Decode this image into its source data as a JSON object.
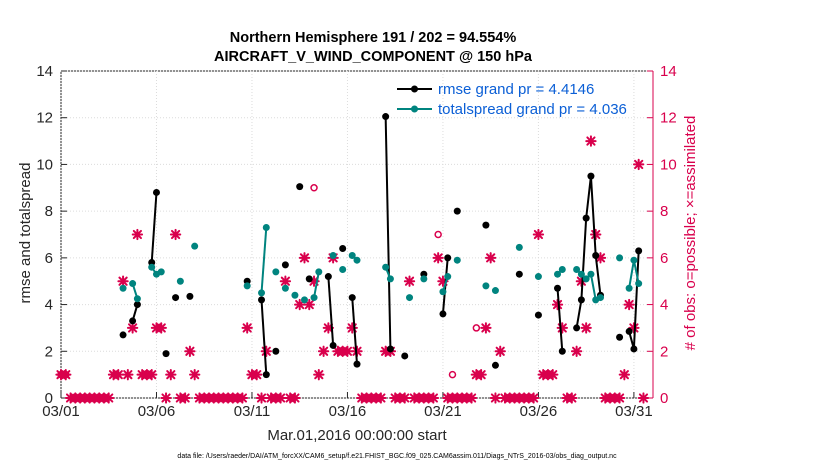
{
  "chart_data": {
    "type": "line",
    "title": "Northern Hemisphere 191 / 202 = 94.554%",
    "subtitle": "AIRCRAFT_V_WIND_COMPONENT @ 150 hPa",
    "xlabel": "Mar.01,2016 00:00:00 start",
    "ylabel": "rmse and totalspread",
    "ylabel_right": "# of obs: o=possible; ×=assimilated",
    "xlim": [
      1,
      32
    ],
    "ylim": [
      0,
      14
    ],
    "ylim_right": [
      0,
      14
    ],
    "yticks": [
      0,
      2,
      4,
      6,
      8,
      10,
      12,
      14
    ],
    "yticks_right": [
      0,
      2,
      4,
      6,
      8,
      10,
      12,
      14
    ],
    "x_ticks": [
      {
        "x": 1,
        "label": "03/01"
      },
      {
        "x": 6,
        "label": "03/06"
      },
      {
        "x": 11,
        "label": "03/11"
      },
      {
        "x": 16,
        "label": "03/16"
      },
      {
        "x": 21,
        "label": "03/21"
      },
      {
        "x": 26,
        "label": "03/26"
      },
      {
        "x": 31,
        "label": "03/31"
      }
    ],
    "colors": {
      "rmse": "#000000",
      "spread": "#00847f",
      "obs": "#d9004c",
      "legend_text": "#0b5fd6",
      "axis": "#262626"
    },
    "legend_position": "top-right",
    "footer": "data file: /Users/raeder/DAI/ATM_forcXX/CAM6_setup/f.e21.FHIST_BGC.f09_025.CAM6assim.011/Diags_NTrS_2016-03/obs_diag_output.nc",
    "series": [
      {
        "name": "rmse grand pr = 4.4146",
        "key": "rmse",
        "segments": [
          [
            [
              4.25,
              2.7
            ]
          ],
          [
            [
              4.75,
              3.3
            ],
            [
              5.0,
              4.0
            ]
          ],
          [
            [
              5.75,
              5.8
            ],
            [
              6.0,
              8.8
            ]
          ],
          [
            [
              6.5,
              1.9
            ]
          ],
          [
            [
              7.0,
              4.3
            ]
          ],
          [
            [
              7.75,
              4.35
            ]
          ],
          [
            [
              10.75,
              5.0
            ]
          ],
          [
            [
              11.5,
              4.2
            ],
            [
              11.75,
              1.0
            ]
          ],
          [
            [
              12.25,
              2.0
            ]
          ],
          [
            [
              12.75,
              5.7
            ]
          ],
          [
            [
              13.5,
              9.05
            ]
          ],
          [
            [
              14.0,
              5.1
            ]
          ],
          [
            [
              15.0,
              5.2
            ],
            [
              15.25,
              2.25
            ]
          ],
          [
            [
              15.75,
              6.4
            ]
          ],
          [
            [
              16.25,
              4.3
            ],
            [
              16.5,
              1.45
            ]
          ],
          [
            [
              18.0,
              12.05
            ],
            [
              18.25,
              2.1
            ]
          ],
          [
            [
              19.0,
              1.8
            ]
          ],
          [
            [
              20.0,
              5.3
            ]
          ],
          [
            [
              21.0,
              3.6
            ],
            [
              21.25,
              6.0
            ]
          ],
          [
            [
              21.75,
              8.0
            ]
          ],
          [
            [
              23.25,
              7.4
            ]
          ],
          [
            [
              23.75,
              1.4
            ]
          ],
          [
            [
              25.0,
              5.3
            ]
          ],
          [
            [
              26.0,
              3.55
            ]
          ],
          [
            [
              27.0,
              4.7
            ],
            [
              27.25,
              2.0
            ]
          ],
          [
            [
              28.0,
              3.0
            ],
            [
              28.25,
              4.2
            ],
            [
              28.5,
              7.7
            ],
            [
              28.75,
              9.5
            ],
            [
              29.0,
              6.1
            ],
            [
              29.25,
              4.4
            ]
          ],
          [
            [
              30.25,
              2.6
            ]
          ],
          [
            [
              30.75,
              2.85
            ],
            [
              31.0,
              2.1
            ],
            [
              31.25,
              6.3
            ]
          ]
        ]
      },
      {
        "name": "totalspread grand pr = 4.036",
        "key": "spread",
        "segments": [
          [
            [
              4.25,
              4.7
            ]
          ],
          [
            [
              4.75,
              4.9
            ],
            [
              5.0,
              4.25
            ]
          ],
          [
            [
              5.75,
              5.6
            ],
            [
              6.0,
              5.3
            ],
            [
              6.25,
              5.4
            ]
          ],
          [
            [
              7.25,
              5.0
            ]
          ],
          [
            [
              8.0,
              6.5
            ]
          ],
          [
            [
              10.75,
              4.8
            ]
          ],
          [
            [
              11.5,
              4.5
            ],
            [
              11.75,
              7.3
            ]
          ],
          [
            [
              12.25,
              5.4
            ]
          ],
          [
            [
              12.75,
              4.7
            ]
          ],
          [
            [
              13.25,
              4.4
            ]
          ],
          [
            [
              13.75,
              4.2
            ]
          ],
          [
            [
              14.25,
              4.3
            ],
            [
              14.5,
              5.4
            ]
          ],
          [
            [
              15.25,
              6.1
            ]
          ],
          [
            [
              15.75,
              5.5
            ]
          ],
          [
            [
              16.25,
              6.1
            ],
            [
              16.5,
              5.9
            ]
          ],
          [
            [
              18.0,
              5.6
            ],
            [
              18.25,
              5.1
            ]
          ],
          [
            [
              19.25,
              4.3
            ]
          ],
          [
            [
              20.0,
              5.1
            ]
          ],
          [
            [
              21.0,
              4.55
            ],
            [
              21.25,
              5.2
            ]
          ],
          [
            [
              21.75,
              5.9
            ]
          ],
          [
            [
              23.25,
              4.8
            ]
          ],
          [
            [
              23.75,
              4.6
            ]
          ],
          [
            [
              25.0,
              6.45
            ]
          ],
          [
            [
              26.0,
              5.2
            ]
          ],
          [
            [
              27.0,
              5.3
            ],
            [
              27.25,
              5.5
            ]
          ],
          [
            [
              28.0,
              5.5
            ],
            [
              28.25,
              5.3
            ],
            [
              28.5,
              5.1
            ],
            [
              28.75,
              5.3
            ],
            [
              29.0,
              4.2
            ],
            [
              29.25,
              4.3
            ]
          ],
          [
            [
              30.25,
              6.0
            ]
          ],
          [
            [
              30.75,
              4.7
            ],
            [
              31.0,
              5.9
            ],
            [
              31.25,
              4.9
            ]
          ]
        ]
      },
      {
        "name": "# of obs possible",
        "key": "obs_possible",
        "marker": "o",
        "axis": "right",
        "points": [
          [
            1.0,
            1.0
          ],
          [
            1.25,
            1.0
          ],
          [
            14.25,
            9.0
          ],
          [
            20.75,
            7.0
          ],
          [
            21.5,
            1.0
          ],
          [
            22.75,
            3.0
          ]
        ]
      },
      {
        "name": "# of obs assimilated",
        "key": "obs_assimilated",
        "marker": "x",
        "axis": "right",
        "points": [
          [
            1.0,
            1
          ],
          [
            1.25,
            1
          ],
          [
            1.5,
            0
          ],
          [
            1.75,
            0
          ],
          [
            2.0,
            0
          ],
          [
            2.25,
            0
          ],
          [
            2.5,
            0
          ],
          [
            2.75,
            0
          ],
          [
            3.0,
            0
          ],
          [
            3.25,
            0
          ],
          [
            3.5,
            0
          ],
          [
            3.75,
            1
          ],
          [
            4.0,
            1
          ],
          [
            4.25,
            5
          ],
          [
            4.5,
            1
          ],
          [
            4.75,
            3
          ],
          [
            5.0,
            7
          ],
          [
            5.25,
            1
          ],
          [
            5.5,
            1
          ],
          [
            5.75,
            1
          ],
          [
            6.0,
            3
          ],
          [
            6.25,
            3
          ],
          [
            6.5,
            0
          ],
          [
            6.75,
            1
          ],
          [
            7.0,
            7
          ],
          [
            7.25,
            0
          ],
          [
            7.5,
            0
          ],
          [
            7.75,
            2
          ],
          [
            8.0,
            1
          ],
          [
            8.25,
            0
          ],
          [
            8.5,
            0
          ],
          [
            8.75,
            0
          ],
          [
            9.0,
            0
          ],
          [
            9.25,
            0
          ],
          [
            9.5,
            0
          ],
          [
            9.75,
            0
          ],
          [
            10.0,
            0
          ],
          [
            10.25,
            0
          ],
          [
            10.5,
            0
          ],
          [
            10.75,
            3
          ],
          [
            11.0,
            1
          ],
          [
            11.25,
            1
          ],
          [
            11.5,
            0
          ],
          [
            11.75,
            2
          ],
          [
            12.0,
            0
          ],
          [
            12.25,
            0
          ],
          [
            12.5,
            0
          ],
          [
            12.75,
            5
          ],
          [
            13.0,
            0
          ],
          [
            13.25,
            0
          ],
          [
            13.5,
            4
          ],
          [
            13.75,
            6
          ],
          [
            14.0,
            4
          ],
          [
            14.25,
            5
          ],
          [
            14.5,
            1
          ],
          [
            14.75,
            2
          ],
          [
            15.0,
            3
          ],
          [
            15.25,
            6
          ],
          [
            15.5,
            2
          ],
          [
            15.75,
            2
          ],
          [
            16.0,
            2
          ],
          [
            16.25,
            3
          ],
          [
            16.5,
            2
          ],
          [
            16.75,
            0
          ],
          [
            17.0,
            0
          ],
          [
            17.25,
            0
          ],
          [
            17.5,
            0
          ],
          [
            17.75,
            0
          ],
          [
            18.0,
            2
          ],
          [
            18.25,
            2
          ],
          [
            18.5,
            0
          ],
          [
            18.75,
            0
          ],
          [
            19.0,
            0
          ],
          [
            19.25,
            5
          ],
          [
            19.5,
            0
          ],
          [
            19.75,
            0
          ],
          [
            20.0,
            0
          ],
          [
            20.25,
            0
          ],
          [
            20.5,
            0
          ],
          [
            20.75,
            6
          ],
          [
            21.0,
            5
          ],
          [
            21.25,
            0
          ],
          [
            21.5,
            0
          ],
          [
            21.75,
            0
          ],
          [
            22.0,
            0
          ],
          [
            22.25,
            0
          ],
          [
            22.5,
            0
          ],
          [
            22.75,
            1
          ],
          [
            23.0,
            1
          ],
          [
            23.25,
            3
          ],
          [
            23.5,
            6
          ],
          [
            23.75,
            0
          ],
          [
            24.0,
            2
          ],
          [
            24.25,
            0
          ],
          [
            24.5,
            0
          ],
          [
            24.75,
            0
          ],
          [
            25.0,
            0
          ],
          [
            25.25,
            0
          ],
          [
            25.5,
            0
          ],
          [
            25.75,
            0
          ],
          [
            26.0,
            7
          ],
          [
            26.25,
            1
          ],
          [
            26.5,
            1
          ],
          [
            26.75,
            1
          ],
          [
            27.0,
            4
          ],
          [
            27.25,
            3
          ],
          [
            27.5,
            0
          ],
          [
            27.75,
            0
          ],
          [
            28.0,
            2
          ],
          [
            28.25,
            5
          ],
          [
            28.5,
            3
          ],
          [
            28.75,
            11
          ],
          [
            29.0,
            7
          ],
          [
            29.25,
            6
          ],
          [
            29.5,
            0
          ],
          [
            29.75,
            0
          ],
          [
            30.0,
            0
          ],
          [
            30.25,
            0
          ],
          [
            30.5,
            1
          ],
          [
            30.75,
            4
          ],
          [
            31.0,
            3
          ],
          [
            31.25,
            10
          ],
          [
            31.5,
            0
          ]
        ]
      }
    ]
  }
}
